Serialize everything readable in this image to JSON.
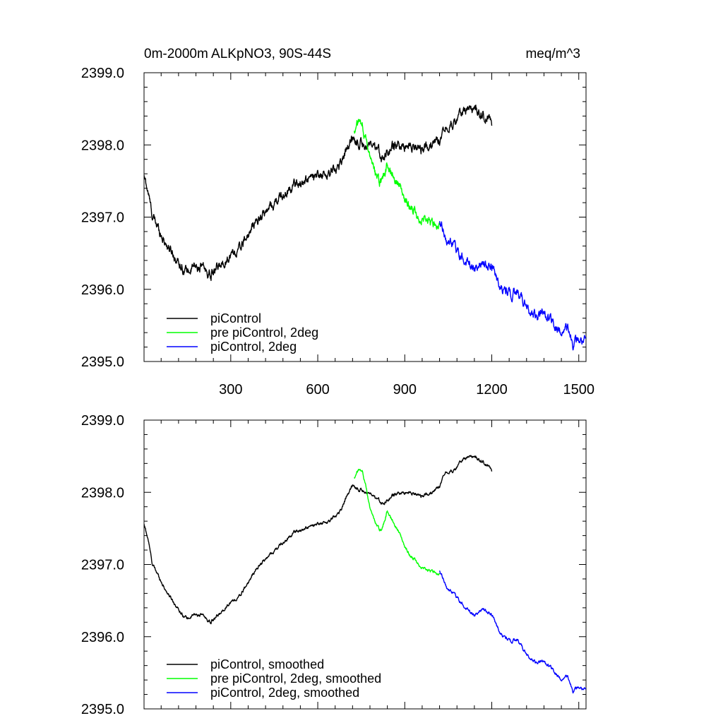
{
  "header": {
    "title": "0m-2000m ALKpNO3, 90S-44S",
    "units": "meq/m^3"
  },
  "chart_data": [
    {
      "type": "line",
      "title": "0m-2000m ALKpNO3, 90S-44S",
      "units": "meq/m^3",
      "xlim": [
        1,
        1525
      ],
      "ylim": [
        2395.0,
        2399.0
      ],
      "xticks": [
        300,
        600,
        900,
        1200,
        1500
      ],
      "xtick_labels": [
        "300",
        "600",
        "900",
        "1200",
        "1500"
      ],
      "yticks": [
        2395.0,
        2396.0,
        2397.0,
        2398.0,
        2399.0
      ],
      "ytick_labels": [
        "2395.0",
        "2396.0",
        "2397.0",
        "2398.0",
        "2399.0"
      ],
      "legend_position": "bottom-left",
      "noise": 0.09,
      "series": [
        {
          "name": "piControl",
          "color": "#000000",
          "x": [
            1,
            15,
            30,
            50,
            75,
            100,
            125,
            150,
            175,
            200,
            230,
            260,
            290,
            330,
            360,
            400,
            440,
            480,
            520,
            560,
            600,
            640,
            680,
            700,
            720,
            740,
            770,
            800,
            830,
            860,
            890,
            920,
            960,
            1000,
            1020,
            1040,
            1070,
            1100,
            1130,
            1160,
            1180,
            1200
          ],
          "y": [
            2397.55,
            2397.35,
            2397.0,
            2396.85,
            2396.65,
            2396.5,
            2396.35,
            2396.25,
            2396.3,
            2396.3,
            2396.2,
            2396.3,
            2396.45,
            2396.55,
            2396.75,
            2397.0,
            2397.15,
            2397.3,
            2397.45,
            2397.5,
            2397.55,
            2397.6,
            2397.75,
            2397.95,
            2398.1,
            2398.05,
            2398.0,
            2397.9,
            2397.85,
            2397.95,
            2398.0,
            2398.0,
            2397.95,
            2398.0,
            2398.1,
            2398.3,
            2398.3,
            2398.45,
            2398.5,
            2398.45,
            2398.4,
            2398.3
          ]
        },
        {
          "name": "pre piControl, 2deg",
          "color": "#00ff00",
          "x": [
            725,
            740,
            755,
            765,
            780,
            800,
            820,
            840,
            860,
            880,
            900,
            920,
            940,
            960,
            980,
            1000,
            1020
          ],
          "y": [
            2398.2,
            2398.3,
            2398.3,
            2398.1,
            2397.75,
            2397.55,
            2397.45,
            2397.75,
            2397.6,
            2397.45,
            2397.25,
            2397.1,
            2397.05,
            2396.95,
            2396.9,
            2396.9,
            2396.85
          ]
        },
        {
          "name": "piControl, 2deg",
          "color": "#0000ff",
          "x": [
            1020,
            1050,
            1080,
            1110,
            1140,
            1170,
            1200,
            1230,
            1260,
            1290,
            1320,
            1350,
            1380,
            1410,
            1440,
            1460,
            1480,
            1500,
            1525
          ],
          "y": [
            2396.9,
            2396.65,
            2396.55,
            2396.4,
            2396.3,
            2396.4,
            2396.3,
            2396.05,
            2395.95,
            2395.95,
            2395.75,
            2395.65,
            2395.65,
            2395.55,
            2395.4,
            2395.45,
            2395.25,
            2395.3,
            2395.25
          ]
        }
      ]
    },
    {
      "type": "line",
      "title": "",
      "xlim": [
        1,
        1525
      ],
      "ylim": [
        2395.0,
        2399.0
      ],
      "xticks": [
        300,
        600,
        900,
        1200,
        1500
      ],
      "xtick_labels": [],
      "yticks": [
        2395.0,
        2396.0,
        2397.0,
        2398.0,
        2399.0
      ],
      "ytick_labels": [
        "2395.0",
        "2396.0",
        "2397.0",
        "2398.0",
        "2399.0"
      ],
      "legend_position": "bottom-left",
      "noise": 0.03,
      "series": [
        {
          "name": "piControl, smoothed",
          "color": "#000000",
          "x": [
            1,
            15,
            30,
            50,
            75,
            100,
            125,
            150,
            175,
            200,
            230,
            260,
            290,
            330,
            360,
            400,
            440,
            480,
            520,
            560,
            600,
            640,
            680,
            700,
            720,
            740,
            770,
            800,
            830,
            860,
            890,
            920,
            960,
            1000,
            1020,
            1040,
            1070,
            1100,
            1130,
            1160,
            1180,
            1200
          ],
          "y": [
            2397.55,
            2397.35,
            2397.0,
            2396.85,
            2396.65,
            2396.5,
            2396.35,
            2396.25,
            2396.3,
            2396.3,
            2396.2,
            2396.3,
            2396.45,
            2396.55,
            2396.75,
            2397.0,
            2397.15,
            2397.3,
            2397.45,
            2397.5,
            2397.55,
            2397.6,
            2397.75,
            2397.95,
            2398.1,
            2398.05,
            2398.0,
            2397.9,
            2397.85,
            2397.95,
            2398.0,
            2398.0,
            2397.95,
            2398.0,
            2398.1,
            2398.3,
            2398.3,
            2398.45,
            2398.5,
            2398.45,
            2398.4,
            2398.3
          ]
        },
        {
          "name": "pre piControl, 2deg, smoothed",
          "color": "#00ff00",
          "x": [
            725,
            740,
            755,
            765,
            780,
            800,
            820,
            840,
            860,
            880,
            900,
            920,
            940,
            960,
            980,
            1000,
            1020
          ],
          "y": [
            2398.2,
            2398.3,
            2398.3,
            2398.1,
            2397.75,
            2397.55,
            2397.45,
            2397.75,
            2397.6,
            2397.45,
            2397.25,
            2397.1,
            2397.05,
            2396.95,
            2396.9,
            2396.9,
            2396.85
          ]
        },
        {
          "name": "piControl, 2deg, smoothed",
          "color": "#0000ff",
          "x": [
            1020,
            1050,
            1080,
            1110,
            1140,
            1170,
            1200,
            1230,
            1260,
            1290,
            1320,
            1350,
            1380,
            1410,
            1440,
            1460,
            1480,
            1500,
            1525
          ],
          "y": [
            2396.9,
            2396.65,
            2396.55,
            2396.4,
            2396.3,
            2396.4,
            2396.3,
            2396.05,
            2395.95,
            2395.95,
            2395.75,
            2395.65,
            2395.65,
            2395.55,
            2395.4,
            2395.45,
            2395.25,
            2395.3,
            2395.25
          ]
        }
      ]
    }
  ]
}
